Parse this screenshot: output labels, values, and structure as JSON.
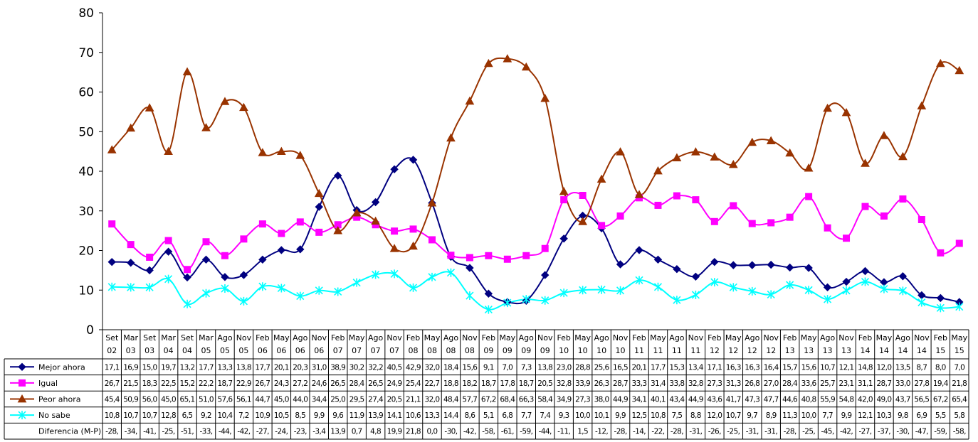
{
  "chart_data": {
    "type": "line",
    "ylim": [
      0,
      80
    ],
    "yticks": [
      0,
      10,
      20,
      30,
      40,
      50,
      60,
      70,
      80
    ],
    "grid": false,
    "legend_placement": "data-table",
    "categories": [
      [
        "Set",
        "02"
      ],
      [
        "Mar",
        "03"
      ],
      [
        "Set",
        "03"
      ],
      [
        "Mar",
        "04"
      ],
      [
        "Set",
        "04"
      ],
      [
        "Mar",
        "05"
      ],
      [
        "Ago",
        "05"
      ],
      [
        "Nov",
        "05"
      ],
      [
        "Feb",
        "06"
      ],
      [
        "May",
        "06"
      ],
      [
        "Ago",
        "06"
      ],
      [
        "Nov",
        "06"
      ],
      [
        "Feb",
        "07"
      ],
      [
        "May",
        "07"
      ],
      [
        "Ago",
        "07"
      ],
      [
        "Nov",
        "07"
      ],
      [
        "Feb",
        "08"
      ],
      [
        "May",
        "08"
      ],
      [
        "Ago",
        "08"
      ],
      [
        "Nov",
        "08"
      ],
      [
        "Feb",
        "09"
      ],
      [
        "May",
        "09"
      ],
      [
        "Ago",
        "09"
      ],
      [
        "Nov",
        "09"
      ],
      [
        "Feb",
        "10"
      ],
      [
        "May",
        "10"
      ],
      [
        "Ago",
        "10"
      ],
      [
        "Nov",
        "10"
      ],
      [
        "Feb",
        "11"
      ],
      [
        "May",
        "11"
      ],
      [
        "Ago",
        "11"
      ],
      [
        "Nov",
        "11"
      ],
      [
        "Feb",
        "12"
      ],
      [
        "May",
        "12"
      ],
      [
        "Ago",
        "12"
      ],
      [
        "Nov",
        "12"
      ],
      [
        "Feb",
        "13"
      ],
      [
        "May",
        "13"
      ],
      [
        "Ago",
        "13"
      ],
      [
        "Nov",
        "13"
      ],
      [
        "Feb",
        "14"
      ],
      [
        "May",
        "14"
      ],
      [
        "Ago",
        "14"
      ],
      [
        "Nov",
        "14"
      ],
      [
        "Feb",
        "15"
      ],
      [
        "May",
        "15"
      ]
    ],
    "series": [
      {
        "name": "Mejor ahora",
        "color": "#000080",
        "marker": "diamond",
        "values": [
          17.1,
          16.9,
          15.0,
          19.7,
          13.2,
          17.7,
          13.3,
          13.8,
          17.7,
          20.1,
          20.3,
          31.0,
          38.9,
          30.2,
          32.2,
          40.5,
          42.9,
          32.0,
          18.4,
          15.6,
          9.1,
          7.0,
          7.3,
          13.8,
          23.0,
          28.8,
          25.6,
          16.5,
          20.1,
          17.7,
          15.3,
          13.4,
          17.1,
          16.3,
          16.3,
          16.4,
          15.7,
          15.6,
          10.7,
          12.1,
          14.8,
          12.0,
          13.5,
          8.7,
          8.0,
          7.0
        ],
        "labels": [
          "17,1",
          "16,9",
          "15,0",
          "19,7",
          "13,2",
          "17,7",
          "13,3",
          "13,8",
          "17,7",
          "20,1",
          "20,3",
          "31,0",
          "38,9",
          "30,2",
          "32,2",
          "40,5",
          "42,9",
          "32,0",
          "18,4",
          "15,6",
          "9,1",
          "7,0",
          "7,3",
          "13,8",
          "23,0",
          "28,8",
          "25,6",
          "16,5",
          "20,1",
          "17,7",
          "15,3",
          "13,4",
          "17,1",
          "16,3",
          "16,3",
          "16,4",
          "15,7",
          "15,6",
          "10,7",
          "12,1",
          "14,8",
          "12,0",
          "13,5",
          "8,7",
          "8,0",
          "7,0"
        ]
      },
      {
        "name": "Igual",
        "color": "#ff00ff",
        "marker": "square",
        "values": [
          26.7,
          21.5,
          18.3,
          22.5,
          15.2,
          22.2,
          18.7,
          22.9,
          26.7,
          24.3,
          27.2,
          24.6,
          26.5,
          28.4,
          26.5,
          24.9,
          25.4,
          22.7,
          18.8,
          18.2,
          18.7,
          17.8,
          18.7,
          20.5,
          32.8,
          33.9,
          26.3,
          28.7,
          33.3,
          31.4,
          33.8,
          32.8,
          27.3,
          31.3,
          26.8,
          27.0,
          28.4,
          33.6,
          25.7,
          23.1,
          31.1,
          28.7,
          33.0,
          27.8,
          19.4,
          21.8
        ],
        "labels": [
          "26,7",
          "21,5",
          "18,3",
          "22,5",
          "15,2",
          "22,2",
          "18,7",
          "22,9",
          "26,7",
          "24,3",
          "27,2",
          "24,6",
          "26,5",
          "28,4",
          "26,5",
          "24,9",
          "25,4",
          "22,7",
          "18,8",
          "18,2",
          "18,7",
          "17,8",
          "18,7",
          "20,5",
          "32,8",
          "33,9",
          "26,3",
          "28,7",
          "33,3",
          "31,4",
          "33,8",
          "32,8",
          "27,3",
          "31,3",
          "26,8",
          "27,0",
          "28,4",
          "33,6",
          "25,7",
          "23,1",
          "31,1",
          "28,7",
          "33,0",
          "27,8",
          "19,4",
          "21,8"
        ]
      },
      {
        "name": "Peor ahora",
        "color": "#993300",
        "marker": "triangle",
        "values": [
          45.4,
          50.9,
          56.0,
          45.0,
          65.1,
          51.0,
          57.6,
          56.1,
          44.7,
          45.0,
          44.0,
          34.4,
          25.0,
          29.5,
          27.4,
          20.5,
          21.1,
          32.0,
          48.4,
          57.7,
          67.2,
          68.4,
          66.3,
          58.4,
          34.9,
          27.3,
          38.0,
          44.9,
          34.1,
          40.1,
          43.4,
          44.9,
          43.6,
          41.7,
          47.3,
          47.7,
          44.6,
          40.8,
          55.9,
          54.8,
          42.0,
          49.0,
          43.7,
          56.5,
          67.2,
          65.4
        ],
        "labels": [
          "45,4",
          "50,9",
          "56,0",
          "45,0",
          "65,1",
          "51,0",
          "57,6",
          "56,1",
          "44,7",
          "45,0",
          "44,0",
          "34,4",
          "25,0",
          "29,5",
          "27,4",
          "20,5",
          "21,1",
          "32,0",
          "48,4",
          "57,7",
          "67,2",
          "68,4",
          "66,3",
          "58,4",
          "34,9",
          "27,3",
          "38,0",
          "44,9",
          "34,1",
          "40,1",
          "43,4",
          "44,9",
          "43,6",
          "41,7",
          "47,3",
          "47,7",
          "44,6",
          "40,8",
          "55,9",
          "54,8",
          "42,0",
          "49,0",
          "43,7",
          "56,5",
          "67,2",
          "65,4"
        ]
      },
      {
        "name": "No sabe",
        "color": "#00ffff",
        "marker": "x",
        "values": [
          10.8,
          10.7,
          10.7,
          12.8,
          6.5,
          9.2,
          10.4,
          7.2,
          10.9,
          10.5,
          8.5,
          9.9,
          9.6,
          11.9,
          13.9,
          14.1,
          10.6,
          13.3,
          14.4,
          8.6,
          5.1,
          6.8,
          7.7,
          7.4,
          9.3,
          10.0,
          10.1,
          9.9,
          12.5,
          10.8,
          7.5,
          8.8,
          12.0,
          10.7,
          9.7,
          8.9,
          11.3,
          10.0,
          7.7,
          9.9,
          12.1,
          10.3,
          9.8,
          6.9,
          5.5,
          5.8
        ],
        "labels": [
          "10,8",
          "10,7",
          "10,7",
          "12,8",
          "6,5",
          "9,2",
          "10,4",
          "7,2",
          "10,9",
          "10,5",
          "8,5",
          "9,9",
          "9,6",
          "11,9",
          "13,9",
          "14,1",
          "10,6",
          "13,3",
          "14,4",
          "8,6",
          "5,1",
          "6,8",
          "7,7",
          "7,4",
          "9,3",
          "10,0",
          "10,1",
          "9,9",
          "12,5",
          "10,8",
          "7,5",
          "8,8",
          "12,0",
          "10,7",
          "9,7",
          "8,9",
          "11,3",
          "10,0",
          "7,7",
          "9,9",
          "12,1",
          "10,3",
          "9,8",
          "6,9",
          "5,5",
          "5,8"
        ]
      }
    ],
    "table_extra_row": {
      "name": "Diferencia (M-P)",
      "labels": [
        "-28,",
        "-34,",
        "-41,",
        "-25,",
        "-51,",
        "-33,",
        "-44,",
        "-42,",
        "-27,",
        "-24,",
        "-23,",
        "-3,4",
        "13,9",
        "0,7",
        "4,8",
        "19,9",
        "21,8",
        "0,0",
        "-30,",
        "-42,",
        "-58,",
        "-61,",
        "-59,",
        "-44,",
        "-11,",
        "1,5",
        "-12,",
        "-28,",
        "-14,",
        "-22,",
        "-28,",
        "-31,",
        "-26,",
        "-25,",
        "-31,",
        "-31,",
        "-28,",
        "-25,",
        "-45,",
        "-42,",
        "-27,",
        "-37,",
        "-30,",
        "-47,",
        "-59,",
        "-58,"
      ]
    }
  }
}
